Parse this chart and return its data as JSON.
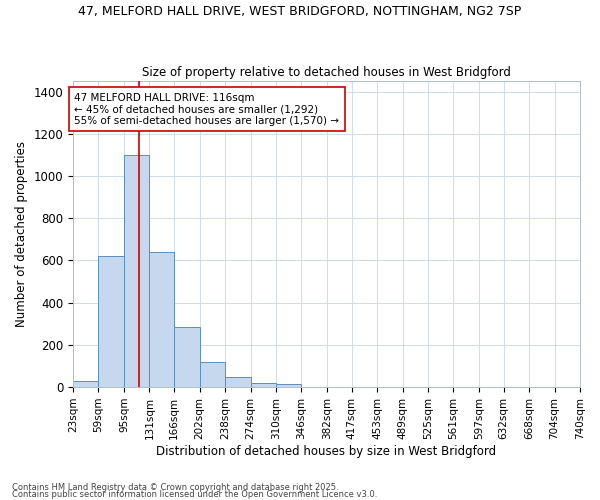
{
  "title1": "47, MELFORD HALL DRIVE, WEST BRIDGFORD, NOTTINGHAM, NG2 7SP",
  "title2": "Size of property relative to detached houses in West Bridgford",
  "xlabel": "Distribution of detached houses by size in West Bridgford",
  "ylabel": "Number of detached properties",
  "bin_edges": [
    23,
    59,
    95,
    131,
    166,
    202,
    238,
    274,
    310,
    346,
    382,
    417,
    453,
    489,
    525,
    561,
    597,
    632,
    668,
    704,
    740
  ],
  "bar_heights": [
    30,
    620,
    1100,
    640,
    285,
    120,
    50,
    20,
    15,
    0,
    0,
    0,
    0,
    0,
    0,
    0,
    0,
    0,
    0,
    0
  ],
  "bar_color": "#c5d8ee",
  "bar_edge_color": "#5a8fbe",
  "property_size": 116,
  "annotation_line1": "47 MELFORD HALL DRIVE: 116sqm",
  "annotation_line2": "← 45% of detached houses are smaller (1,292)",
  "annotation_line3": "55% of semi-detached houses are larger (1,570) →",
  "vline_color": "#cc0000",
  "annotation_box_color": "#ffffff",
  "annotation_box_edge": "#cc0000",
  "grid_color": "#d0dce8",
  "bg_color": "#ffffff",
  "plot_bg_color": "#ffffff",
  "ylim": [
    0,
    1450
  ],
  "yticks": [
    0,
    200,
    400,
    600,
    800,
    1000,
    1200,
    1400
  ],
  "footnote1": "Contains HM Land Registry data © Crown copyright and database right 2025.",
  "footnote2": "Contains public sector information licensed under the Open Government Licence v3.0."
}
